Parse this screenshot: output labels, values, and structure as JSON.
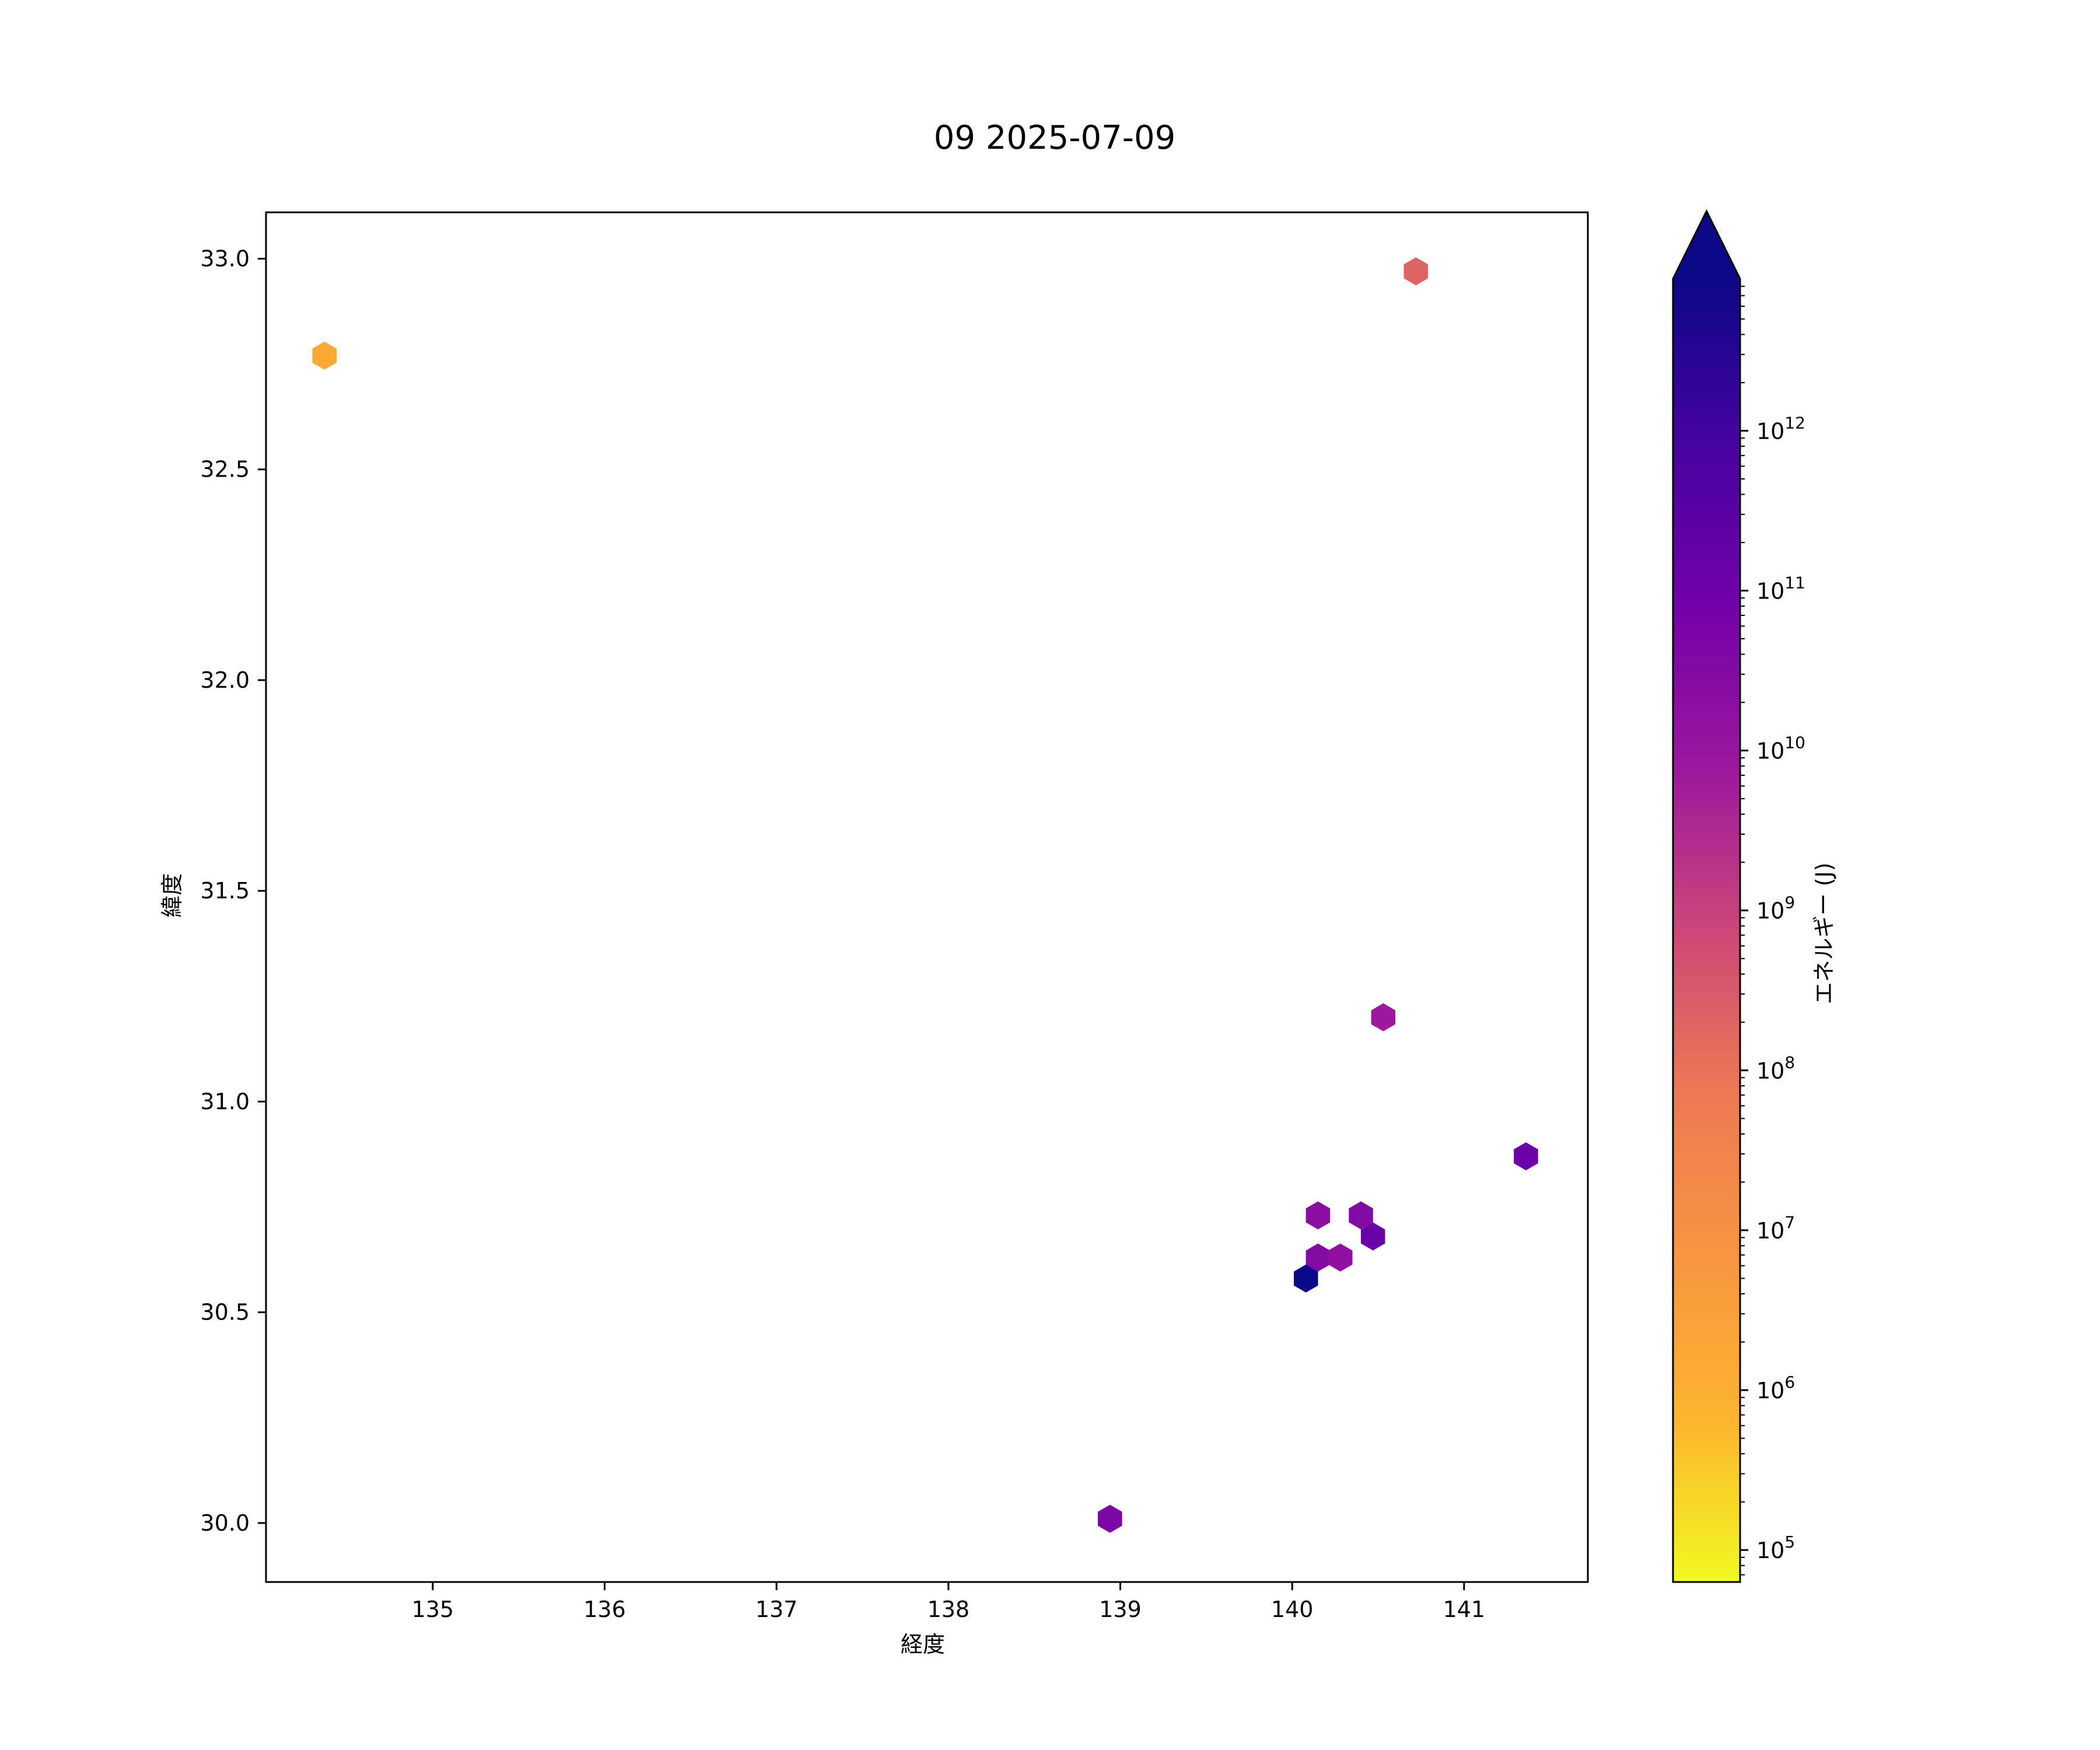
{
  "chart_data": {
    "type": "scatter",
    "marker": "hexagon",
    "title": "09 2025-07-09",
    "xlabel": "経度",
    "ylabel": "緯度",
    "xlim": [
      134.03,
      141.72
    ],
    "ylim": [
      29.86,
      33.11
    ],
    "xticks": [
      135,
      136,
      137,
      138,
      139,
      140,
      141
    ],
    "yticks": [
      30.0,
      30.5,
      31.0,
      31.5,
      32.0,
      32.5,
      33.0
    ],
    "ytick_labels": [
      "30.0",
      "30.5",
      "31.0",
      "31.5",
      "32.0",
      "32.5",
      "33.0"
    ],
    "points": [
      {
        "lon": 134.37,
        "lat": 32.77,
        "energy_J": 1500000.0
      },
      {
        "lon": 140.72,
        "lat": 32.97,
        "energy_J": 200000000.0
      },
      {
        "lon": 140.53,
        "lat": 31.2,
        "energy_J": 7000000000.0
      },
      {
        "lon": 141.36,
        "lat": 30.87,
        "energy_J": 120000000000.0
      },
      {
        "lon": 140.15,
        "lat": 30.73,
        "energy_J": 20000000000.0
      },
      {
        "lon": 140.4,
        "lat": 30.73,
        "energy_J": 30000000000.0
      },
      {
        "lon": 140.47,
        "lat": 30.68,
        "energy_J": 150000000000.0
      },
      {
        "lon": 140.15,
        "lat": 30.63,
        "energy_J": 30000000000.0
      },
      {
        "lon": 140.28,
        "lat": 30.63,
        "energy_J": 15000000000.0
      },
      {
        "lon": 140.08,
        "lat": 30.58,
        "energy_J": 10000000000000.0
      },
      {
        "lon": 138.94,
        "lat": 30.01,
        "energy_J": 50000000000.0
      }
    ],
    "colorbar": {
      "label": "エネルギー (J)",
      "scale": "log",
      "cmap": "plasma",
      "extend": "max",
      "range_log10": [
        4.8,
        12.95
      ],
      "ticks_exponent": [
        5,
        6,
        7,
        8,
        9,
        10,
        11,
        12
      ],
      "tick_base": "10",
      "gradient_colors": [
        "#f0f921",
        "#fdb42f",
        "#f89540",
        "#ed7953",
        "#cc4778",
        "#9c179e",
        "#7201a8",
        "#46039f",
        "#0d0887"
      ],
      "extend_color": "#0d0887"
    }
  }
}
